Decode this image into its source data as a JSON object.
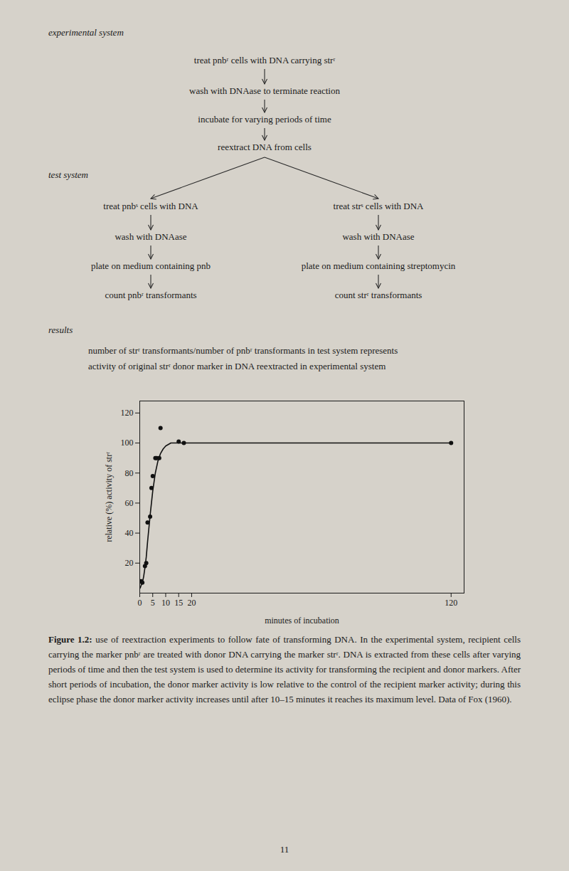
{
  "chart_data": {
    "type": "scatter",
    "xlabel": "minutes of incubation",
    "ylabel": "relative (%) activity of strʳ",
    "series": [
      {
        "type": "scatter",
        "marker": "o",
        "color": "#111111",
        "x": [
          0.5,
          1.0,
          2.0,
          2.5,
          3.0,
          4.0,
          4.5,
          5.0,
          6.0,
          6.5,
          7.5,
          8.0,
          15.0,
          17.0,
          120.0
        ],
        "values": [
          8,
          7,
          18,
          20,
          47,
          51,
          70,
          78,
          90,
          90,
          90,
          110,
          101,
          100,
          100
        ]
      },
      {
        "type": "line",
        "line_style": "solid",
        "color": "#111111",
        "x": [
          0,
          0.3,
          0.5,
          1,
          1.5,
          2,
          2.5,
          3,
          4,
          5,
          6,
          7,
          8,
          9,
          10,
          12,
          15,
          17,
          20,
          120
        ],
        "values": [
          3,
          4,
          5,
          7,
          11,
          17,
          24,
          34,
          52,
          68,
          80,
          88,
          93,
          96,
          98,
          100,
          100,
          100,
          100,
          100
        ]
      }
    ],
    "xlim": [
      0,
      125
    ],
    "ylim": [
      0,
      128
    ],
    "xticks": [
      0,
      5,
      10,
      15,
      20,
      120
    ],
    "yticks": [
      20,
      40,
      60,
      80,
      100,
      120
    ],
    "grid": false,
    "annotations": [
      "experimental system",
      "treat pnbʳ cells with DNA carrying strʳ",
      "wash with DNAase to terminate reaction",
      "incubate for varying periods of time",
      "reextract DNA from cells",
      "test system",
      "treat pnbˢ cells with DNA",
      "wash with DNAase",
      "plate on medium containing pnb",
      "count pnbʳ transformants",
      "treat strˢ cells with DNA",
      "wash with DNAase",
      "plate on medium containing streptomycin",
      "count strʳ transformants",
      "results",
      "number of strʳ transformants/number of pnbʳ transformants in test system represents activity of original strʳ donor marker in DNA reextracted in experimental system",
      "11"
    ],
    "caption": "Figure 1.2: use of reextraction experiments to follow fate of transforming DNA. In the experimental system, recipient cells carrying the marker pnbʳ are treated with donor DNA carrying the marker strʳ. DNA is extracted from these cells after varying periods of time and then the test system is used to determine its activity for transforming the recipient and donor markers. After short periods of incubation, the donor marker activity is low relative to the control of the recipient marker activity; during this eclipse phase the donor marker activity increases until after 10–15 minutes it reaches its maximum level. Data of Fox (1960)."
  }
}
